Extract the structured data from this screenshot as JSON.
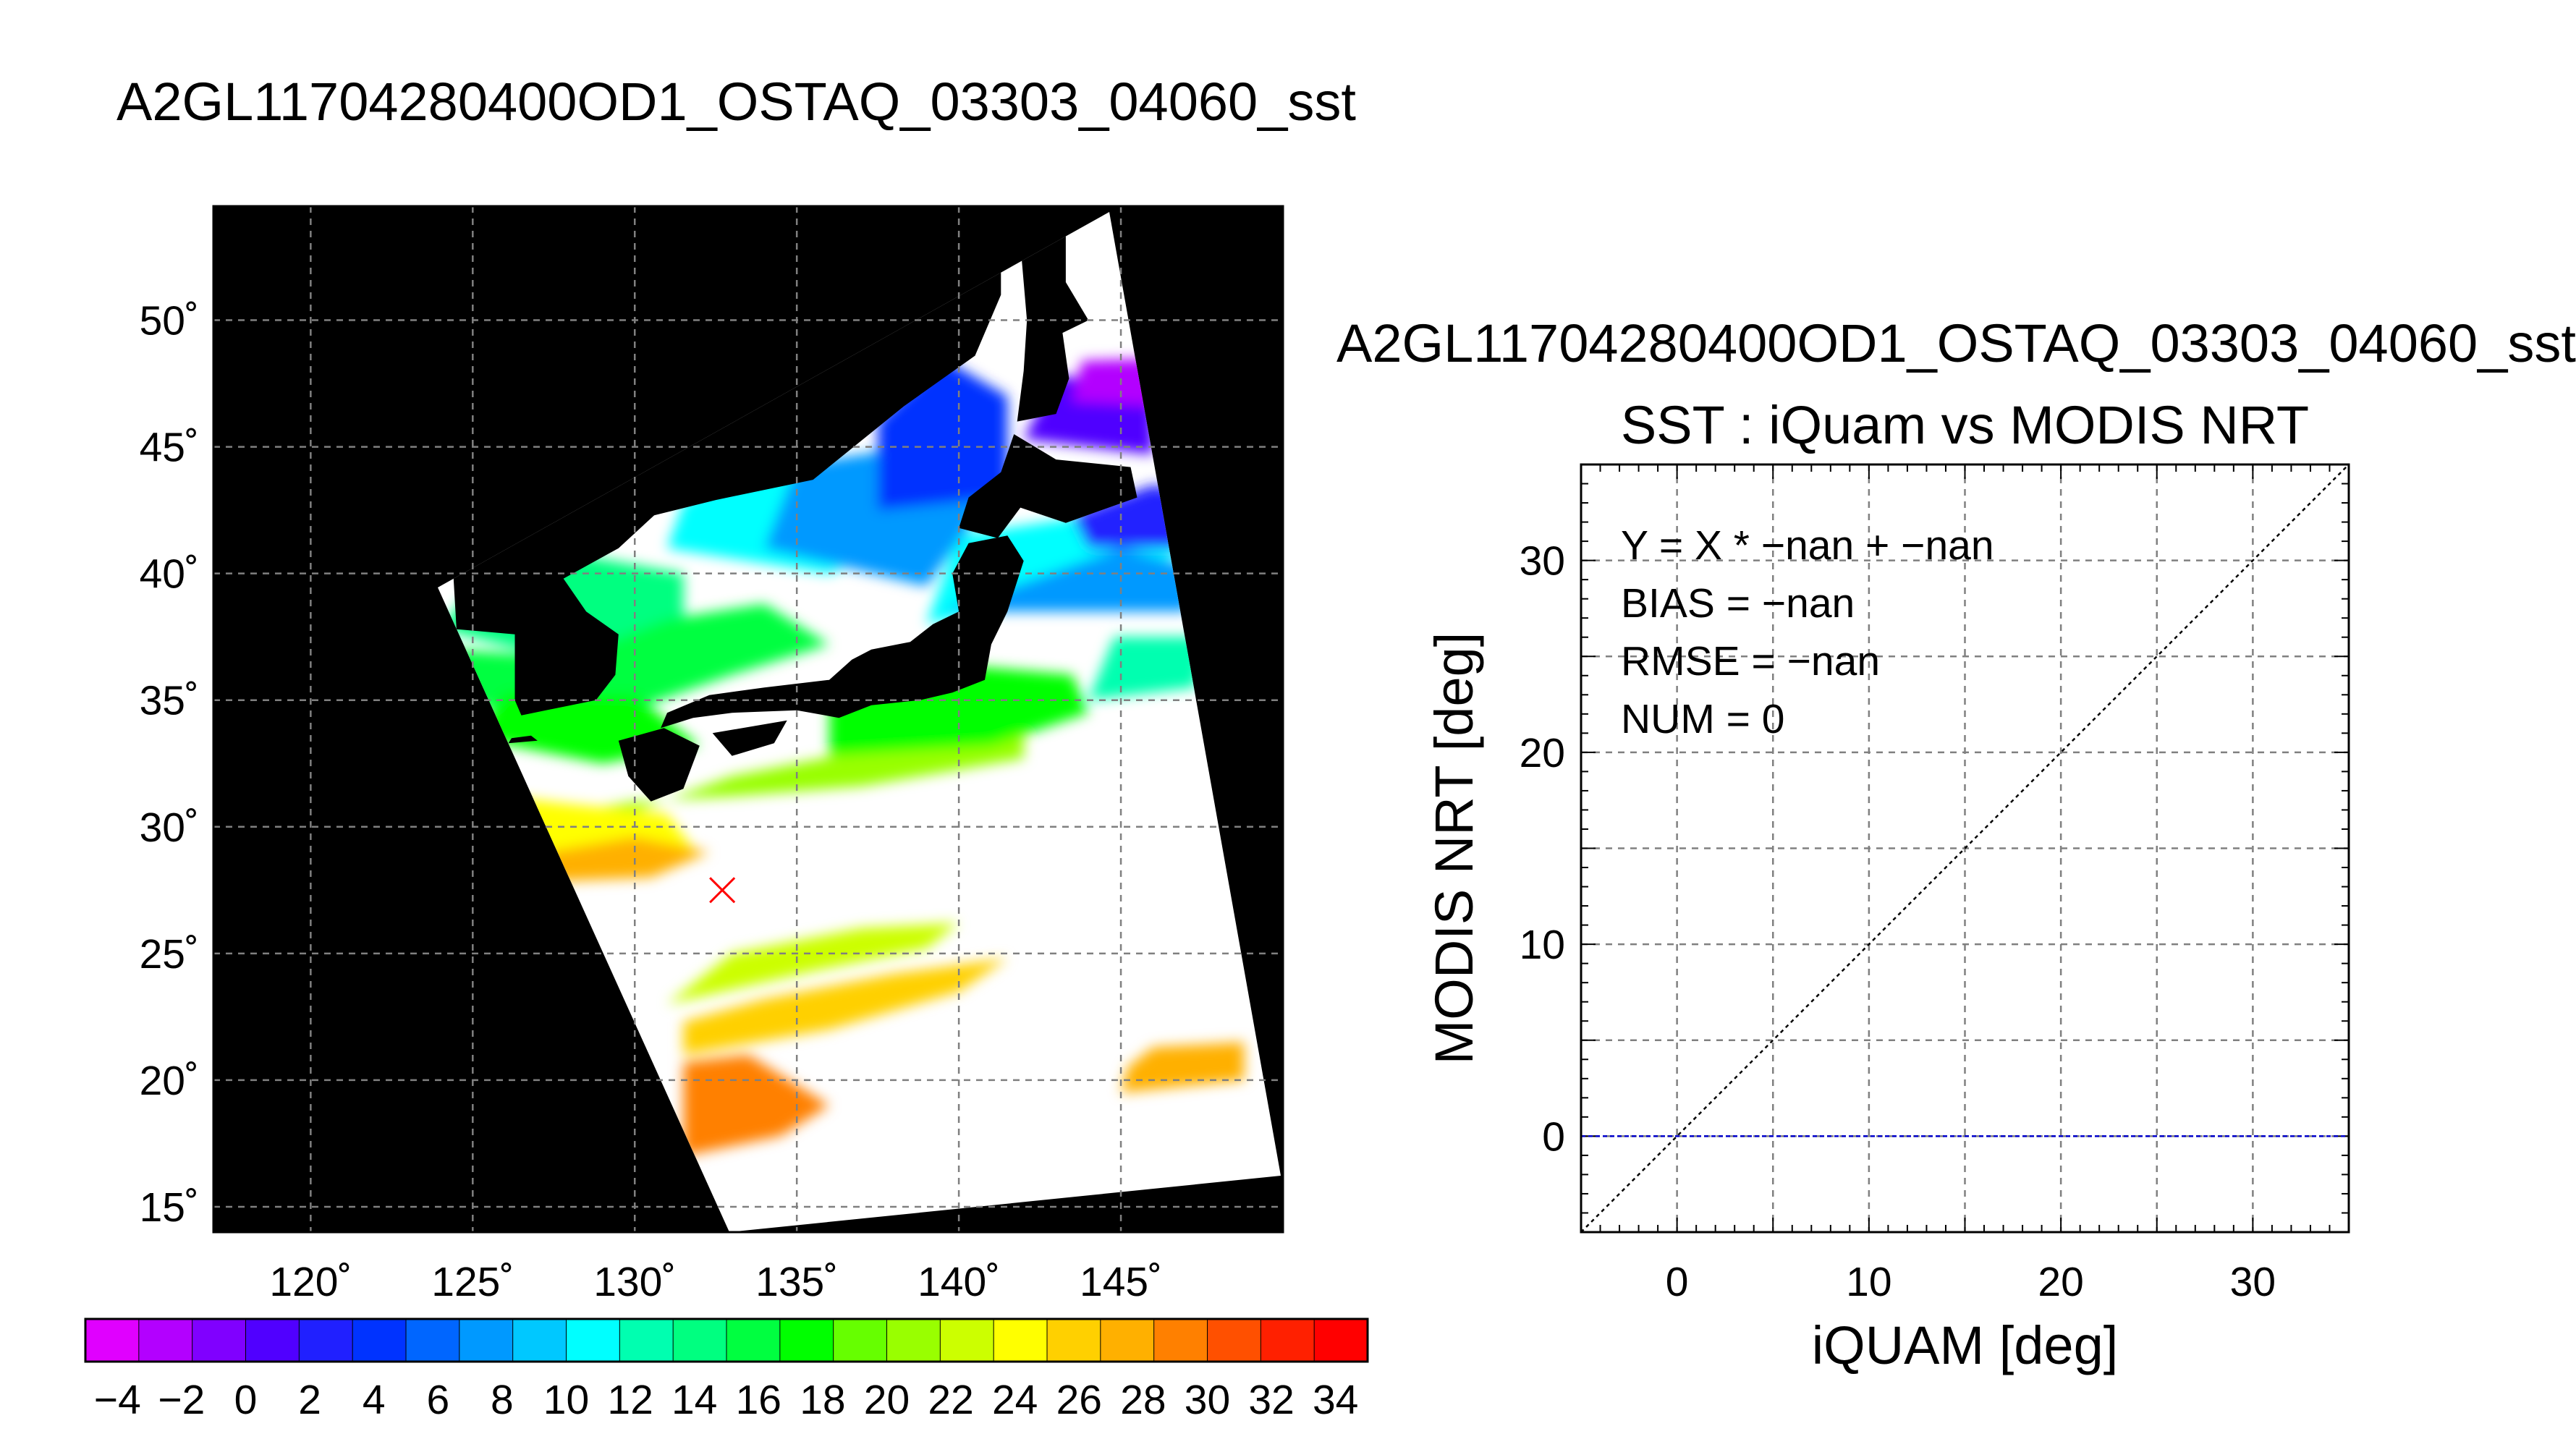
{
  "page": {
    "title": "A2GL11704280400OD1_OSTAQ_03303_04060_sst",
    "right_title": "A2GL11704280400OD1_OSTAQ_03303_04060_sst"
  },
  "colors": {
    "land": "#000000",
    "cloud": "#ffffff",
    "marker": "#ff0000",
    "zero_line": "#0000cc",
    "identity_line": "#000000"
  },
  "chart_data": [
    {
      "type": "heatmap",
      "title": "A2GL11704280400OD1_OSTAQ_03303_04060_sst",
      "x_ticks": [
        "120˚",
        "125˚",
        "130˚",
        "135˚",
        "140˚",
        "145˚"
      ],
      "y_ticks": [
        "15˚",
        "20˚",
        "25˚",
        "30˚",
        "35˚",
        "40˚",
        "45˚",
        "50˚"
      ],
      "x_tick_values": [
        120,
        125,
        130,
        135,
        140,
        145
      ],
      "y_tick_values": [
        15,
        20,
        25,
        30,
        35,
        40,
        45,
        50
      ],
      "xlim": [
        117,
        150
      ],
      "ylim": [
        14,
        54.5
      ],
      "grid": true,
      "marker": {
        "lon": 132.7,
        "lat": 27.5,
        "symbol": "×"
      },
      "colorbar": {
        "min": -5,
        "max": 35,
        "tick_values": [
          -4,
          -2,
          0,
          2,
          4,
          6,
          8,
          10,
          12,
          14,
          16,
          18,
          20,
          22,
          24,
          26,
          28,
          30,
          32,
          34
        ],
        "tick_labels": [
          "−4",
          "−2",
          "0",
          "2",
          "4",
          "6",
          "8",
          "10",
          "12",
          "14",
          "16",
          "18",
          "20",
          "22",
          "24",
          "26",
          "28",
          "30",
          "32",
          "34"
        ],
        "colors": [
          "#e000ff",
          "#b300ff",
          "#8000ff",
          "#5000ff",
          "#2020ff",
          "#0033ff",
          "#0066ff",
          "#0099ff",
          "#00c8ff",
          "#00ffff",
          "#00ffb0",
          "#00ff80",
          "#00ff40",
          "#00ff00",
          "#66ff00",
          "#99ff00",
          "#ccff00",
          "#ffff00",
          "#ffd000",
          "#ffb000",
          "#ff8000",
          "#ff5000",
          "#ff2000",
          "#ff0000"
        ]
      }
    },
    {
      "type": "scatter",
      "title": "SST : iQuam vs MODIS NRT",
      "xlabel": "iQUAM [deg]",
      "ylabel": "MODIS NRT [deg]",
      "xlim": [
        -5,
        35
      ],
      "ylim": [
        -5,
        35
      ],
      "x_ticks": [
        0,
        10,
        20,
        30
      ],
      "y_ticks": [
        0,
        10,
        20,
        30
      ],
      "grid": true,
      "points": [],
      "lines": [
        {
          "kind": "identity",
          "slope": 1,
          "intercept": 0
        },
        {
          "kind": "zero",
          "y": 0
        }
      ],
      "stats": [
        {
          "text": "Y = X * −nan + −nan"
        },
        {
          "text": "BIAS = −nan"
        },
        {
          "text": "RMSE = −nan"
        },
        {
          "text": "NUM = 0"
        }
      ]
    }
  ]
}
